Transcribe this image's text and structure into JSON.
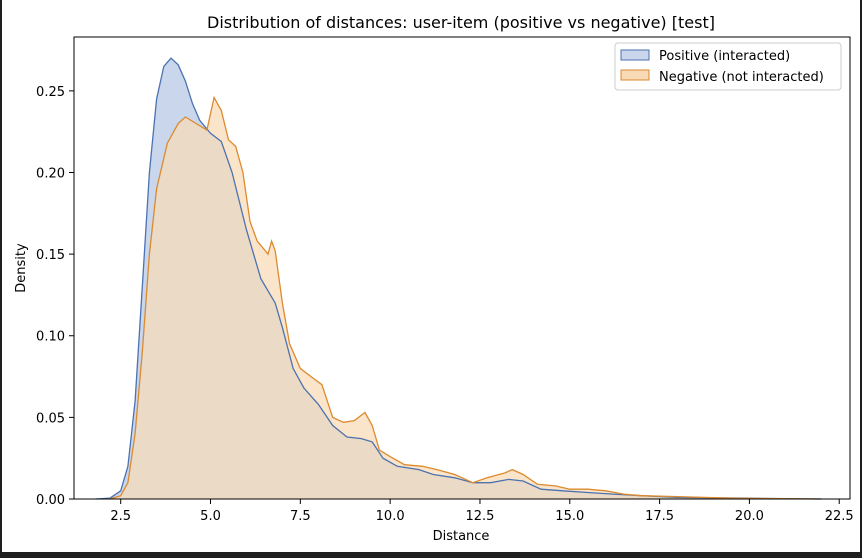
{
  "chart_data": {
    "type": "area",
    "title": "Distribution of distances: user-item (positive vs negative) [test]",
    "xlabel": "Distance",
    "ylabel": "Density",
    "xlim": [
      1.2,
      22.8
    ],
    "ylim": [
      0,
      0.283
    ],
    "xticks": [
      2.5,
      5.0,
      7.5,
      10.0,
      12.5,
      15.0,
      17.5,
      20.0,
      22.5
    ],
    "xtick_labels": [
      "2.5",
      "5.0",
      "7.5",
      "10.0",
      "12.5",
      "15.0",
      "17.5",
      "20.0",
      "22.5"
    ],
    "yticks": [
      0.0,
      0.05,
      0.1,
      0.15,
      0.2,
      0.25
    ],
    "ytick_labels": [
      "0.00",
      "0.05",
      "0.10",
      "0.15",
      "0.20",
      "0.25"
    ],
    "grid": false,
    "legend_position": "top-right",
    "series": [
      {
        "name": "Positive (interacted)",
        "line_color": "#4c72b0",
        "fill_color": "#c9d6ec",
        "points": [
          [
            1.8,
            0.0
          ],
          [
            2.2,
            0.0005
          ],
          [
            2.5,
            0.005
          ],
          [
            2.7,
            0.02
          ],
          [
            2.9,
            0.06
          ],
          [
            3.1,
            0.13
          ],
          [
            3.3,
            0.2
          ],
          [
            3.5,
            0.245
          ],
          [
            3.7,
            0.265
          ],
          [
            3.9,
            0.27
          ],
          [
            4.1,
            0.266
          ],
          [
            4.3,
            0.256
          ],
          [
            4.5,
            0.242
          ],
          [
            4.7,
            0.232
          ],
          [
            5.0,
            0.224
          ],
          [
            5.3,
            0.219
          ],
          [
            5.6,
            0.2
          ],
          [
            6.0,
            0.165
          ],
          [
            6.4,
            0.135
          ],
          [
            6.8,
            0.12
          ],
          [
            7.0,
            0.105
          ],
          [
            7.3,
            0.08
          ],
          [
            7.6,
            0.068
          ],
          [
            8.0,
            0.058
          ],
          [
            8.4,
            0.045
          ],
          [
            8.8,
            0.038
          ],
          [
            9.2,
            0.037
          ],
          [
            9.5,
            0.035
          ],
          [
            9.8,
            0.025
          ],
          [
            10.2,
            0.02
          ],
          [
            10.8,
            0.018
          ],
          [
            11.2,
            0.015
          ],
          [
            11.8,
            0.013
          ],
          [
            12.3,
            0.01
          ],
          [
            12.8,
            0.01
          ],
          [
            13.3,
            0.012
          ],
          [
            13.7,
            0.011
          ],
          [
            14.2,
            0.006
          ],
          [
            14.8,
            0.005
          ],
          [
            15.5,
            0.004
          ],
          [
            16.2,
            0.003
          ],
          [
            17.0,
            0.002
          ],
          [
            18.0,
            0.001
          ],
          [
            20.0,
            0.0005
          ],
          [
            22.0,
            0.0
          ]
        ]
      },
      {
        "name": "Negative (not interacted)",
        "line_color": "#dd8a2e",
        "fill_color": "#f8dbb6",
        "points": [
          [
            2.2,
            0.0
          ],
          [
            2.5,
            0.002
          ],
          [
            2.7,
            0.01
          ],
          [
            2.9,
            0.04
          ],
          [
            3.1,
            0.09
          ],
          [
            3.3,
            0.15
          ],
          [
            3.5,
            0.19
          ],
          [
            3.8,
            0.218
          ],
          [
            4.1,
            0.23
          ],
          [
            4.3,
            0.234
          ],
          [
            4.6,
            0.23
          ],
          [
            4.9,
            0.226
          ],
          [
            5.1,
            0.246
          ],
          [
            5.3,
            0.238
          ],
          [
            5.5,
            0.22
          ],
          [
            5.7,
            0.216
          ],
          [
            5.9,
            0.2
          ],
          [
            6.1,
            0.17
          ],
          [
            6.3,
            0.158
          ],
          [
            6.6,
            0.15
          ],
          [
            6.7,
            0.158
          ],
          [
            6.8,
            0.152
          ],
          [
            7.0,
            0.12
          ],
          [
            7.2,
            0.095
          ],
          [
            7.5,
            0.08
          ],
          [
            7.8,
            0.075
          ],
          [
            8.1,
            0.07
          ],
          [
            8.4,
            0.05
          ],
          [
            8.7,
            0.047
          ],
          [
            9.0,
            0.048
          ],
          [
            9.3,
            0.053
          ],
          [
            9.5,
            0.045
          ],
          [
            9.7,
            0.03
          ],
          [
            10.0,
            0.026
          ],
          [
            10.4,
            0.021
          ],
          [
            10.9,
            0.02
          ],
          [
            11.3,
            0.018
          ],
          [
            11.8,
            0.015
          ],
          [
            12.3,
            0.01
          ],
          [
            12.7,
            0.013
          ],
          [
            13.2,
            0.016
          ],
          [
            13.4,
            0.018
          ],
          [
            13.7,
            0.015
          ],
          [
            14.1,
            0.009
          ],
          [
            14.6,
            0.008
          ],
          [
            15.0,
            0.006
          ],
          [
            15.5,
            0.006
          ],
          [
            16.0,
            0.005
          ],
          [
            16.5,
            0.003
          ],
          [
            17.0,
            0.002
          ],
          [
            18.0,
            0.0015
          ],
          [
            19.5,
            0.0005
          ],
          [
            22.0,
            0.0
          ]
        ]
      }
    ]
  }
}
